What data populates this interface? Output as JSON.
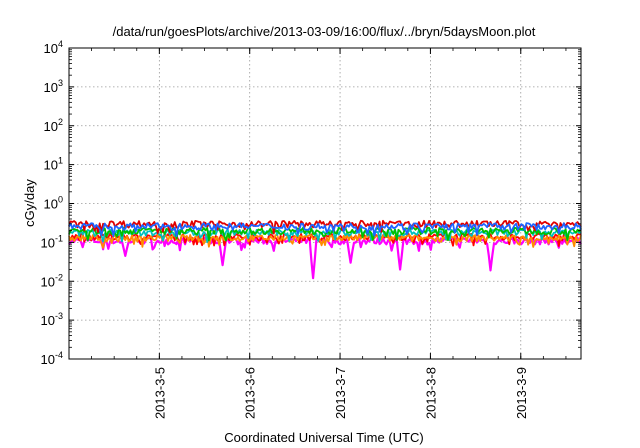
{
  "chart_data": {
    "type": "line",
    "title": "/data/run/goesPlots/archive/2013-03-09/16:00/flux/../bryn/5daysMoon.plot",
    "xlabel": "Coordinated Universal Time (UTC)",
    "ylabel": "cGy/day",
    "yscale": "log",
    "ylim": [
      0.0001,
      10000
    ],
    "y_ticks": [
      {
        "value": 0.0001,
        "base": "10",
        "exp": "-4"
      },
      {
        "value": 0.001,
        "base": "10",
        "exp": "-3"
      },
      {
        "value": 0.01,
        "base": "10",
        "exp": "-2"
      },
      {
        "value": 0.1,
        "base": "10",
        "exp": "-1"
      },
      {
        "value": 1,
        "base": "10",
        "exp": "0"
      },
      {
        "value": 10,
        "base": "10",
        "exp": "1"
      },
      {
        "value": 100,
        "base": "10",
        "exp": "2"
      },
      {
        "value": 1000,
        "base": "10",
        "exp": "3"
      },
      {
        "value": 10000,
        "base": "10",
        "exp": "4"
      }
    ],
    "xlim": [
      "2013-03-04T00:00",
      "2013-03-09T16:00"
    ],
    "x_ticks": [
      {
        "value": "2013-03-05T00:00",
        "label": "2013-3-5"
      },
      {
        "value": "2013-03-06T00:00",
        "label": "2013-3-6"
      },
      {
        "value": "2013-03-07T00:00",
        "label": "2013-3-7"
      },
      {
        "value": "2013-03-08T00:00",
        "label": "2013-3-8"
      },
      {
        "value": "2013-03-09T00:00",
        "label": "2013-3-9"
      }
    ],
    "grid": true,
    "legend": "none",
    "series": [
      {
        "color": "#ff00ff",
        "typical": 0.11,
        "lows": [
          {
            "x": "2013-03-04T15:00",
            "y": 0.045
          },
          {
            "x": "2013-03-05T17:00",
            "y": 0.026
          },
          {
            "x": "2013-03-06T17:00",
            "y": 0.012
          },
          {
            "x": "2013-03-07T03:00",
            "y": 0.03
          },
          {
            "x": "2013-03-07T16:00",
            "y": 0.02
          },
          {
            "x": "2013-03-08T16:00",
            "y": 0.019
          }
        ]
      },
      {
        "color": "#ff0000",
        "typical": 0.14,
        "lows": []
      },
      {
        "color": "#ff8c00",
        "typical": 0.13,
        "lows": []
      },
      {
        "color": "#00bfbf",
        "typical": 0.18,
        "lows": []
      },
      {
        "color": "#00c000",
        "typical": 0.2,
        "lows": []
      },
      {
        "color": "#e00000",
        "typical": 0.3,
        "lows": []
      },
      {
        "color": "#1e64ff",
        "typical": 0.26,
        "lows": []
      }
    ]
  }
}
